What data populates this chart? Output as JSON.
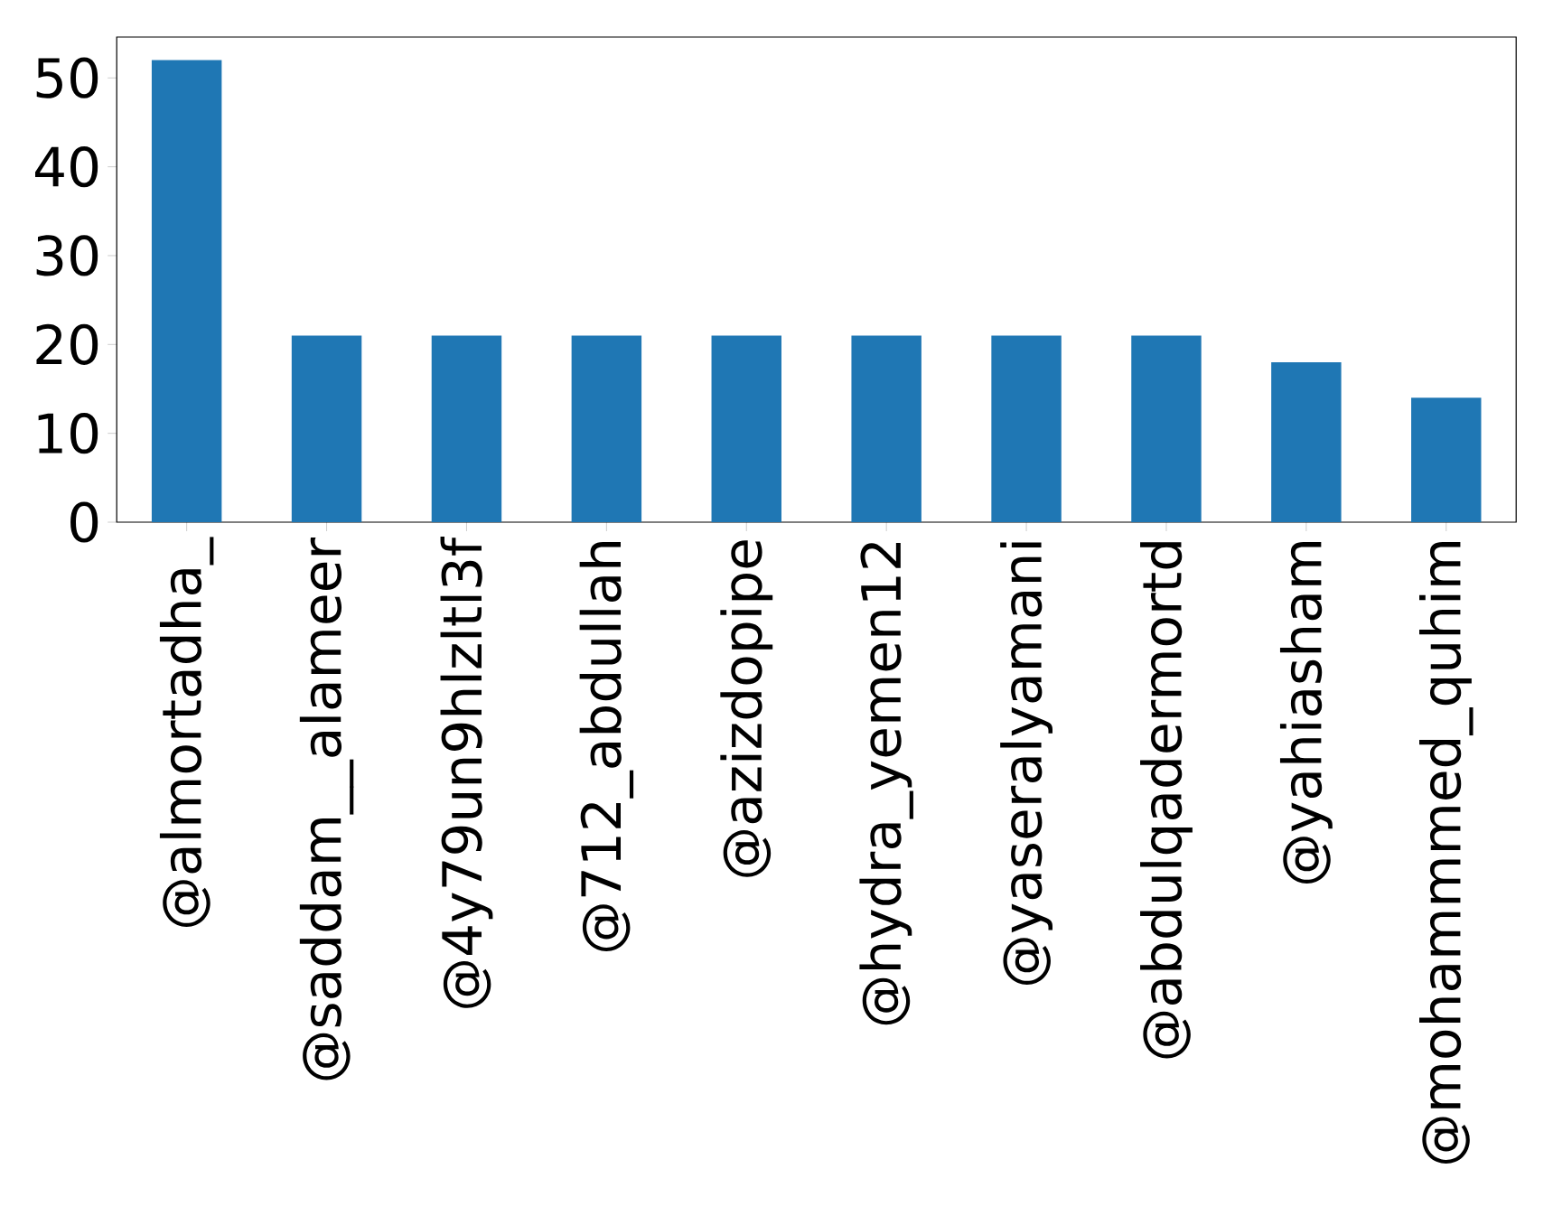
{
  "chart_data": {
    "type": "bar",
    "categories": [
      "@almortadha_",
      "@saddam__alameer",
      "@4y79un9hlzltl3f",
      "@712_abdullah",
      "@azizdopipe",
      "@hydra_yemen12",
      "@yaseralyamani",
      "@abdulqadermortd",
      "@yahiasham",
      "@mohammmed_quhim"
    ],
    "values": [
      52,
      21,
      21,
      21,
      21,
      21,
      21,
      21,
      18,
      14
    ],
    "color": "#1f77b4",
    "ylim": [
      0,
      54.6
    ],
    "yticks": [
      0,
      10,
      20,
      30,
      40,
      50
    ]
  }
}
